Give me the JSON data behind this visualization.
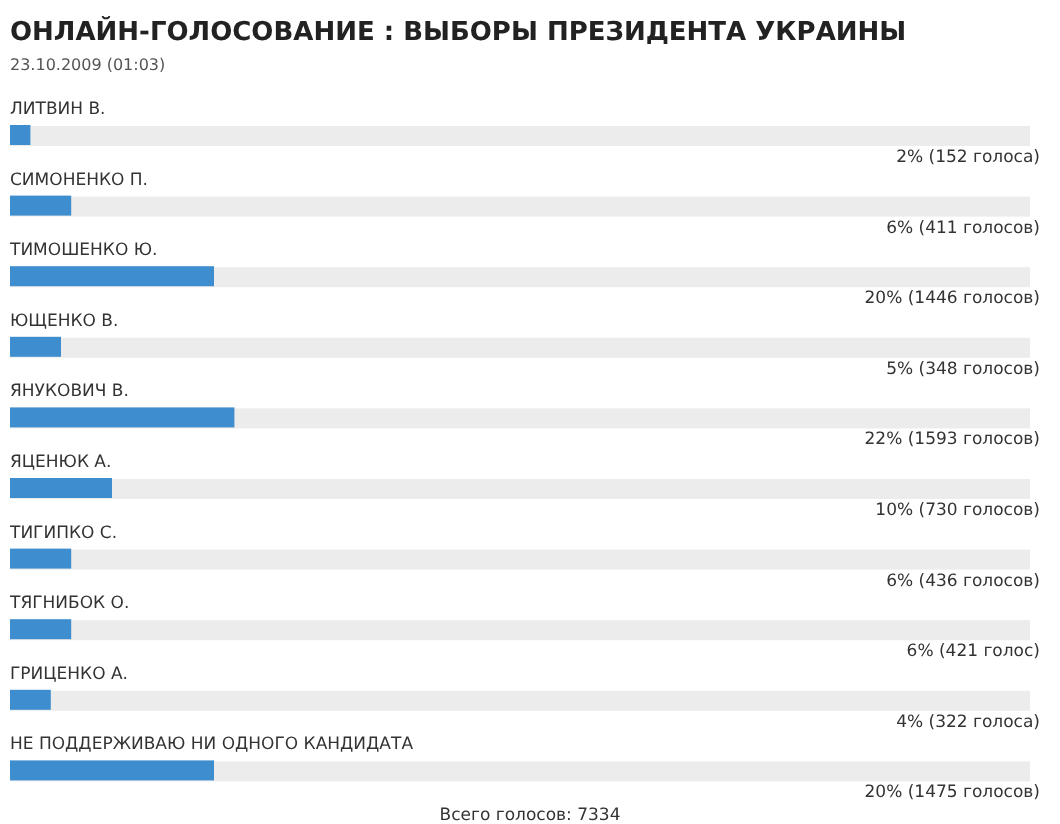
{
  "chart_data": {
    "type": "bar",
    "orientation": "horizontal",
    "title": "ОНЛАЙН-ГОЛОСОВАНИЕ : ВЫБОРЫ ПРЕЗИДЕНТА УКРАИНЫ",
    "subtitle": "23.10.2009 (01:03)",
    "categories": [
      "ЛИТВИН В.",
      "СИМОНЕНКО П.",
      "ТИМОШЕНКО Ю.",
      "ЮЩЕНКО В.",
      "ЯНУКОВИЧ В.",
      "ЯЦЕНЮК А.",
      "ТИГИПКО С.",
      "ТЯГНИБОК О.",
      "ГРИЦЕНКО А.",
      "НЕ ПОДДЕРЖИВАЮ НИ ОДНОГО КАНДИДАТА"
    ],
    "values": [
      2,
      6,
      20,
      5,
      22,
      10,
      6,
      6,
      4,
      20
    ],
    "value_labels": [
      "2% (152 голоса)",
      "6% (411 голосов)",
      "20% (1446 голосов)",
      "5% (348 голосов)",
      "22% (1593 голосов)",
      "10% (730 голосов)",
      "6% (436 голосов)",
      "6% (421 голос)",
      "4% (322 голоса)",
      "20% (1475 голосов)"
    ],
    "color": "#3d8dcf",
    "xlim": [
      0,
      100
    ],
    "annotations": [
      "Всего голосов: 7334"
    ]
  }
}
